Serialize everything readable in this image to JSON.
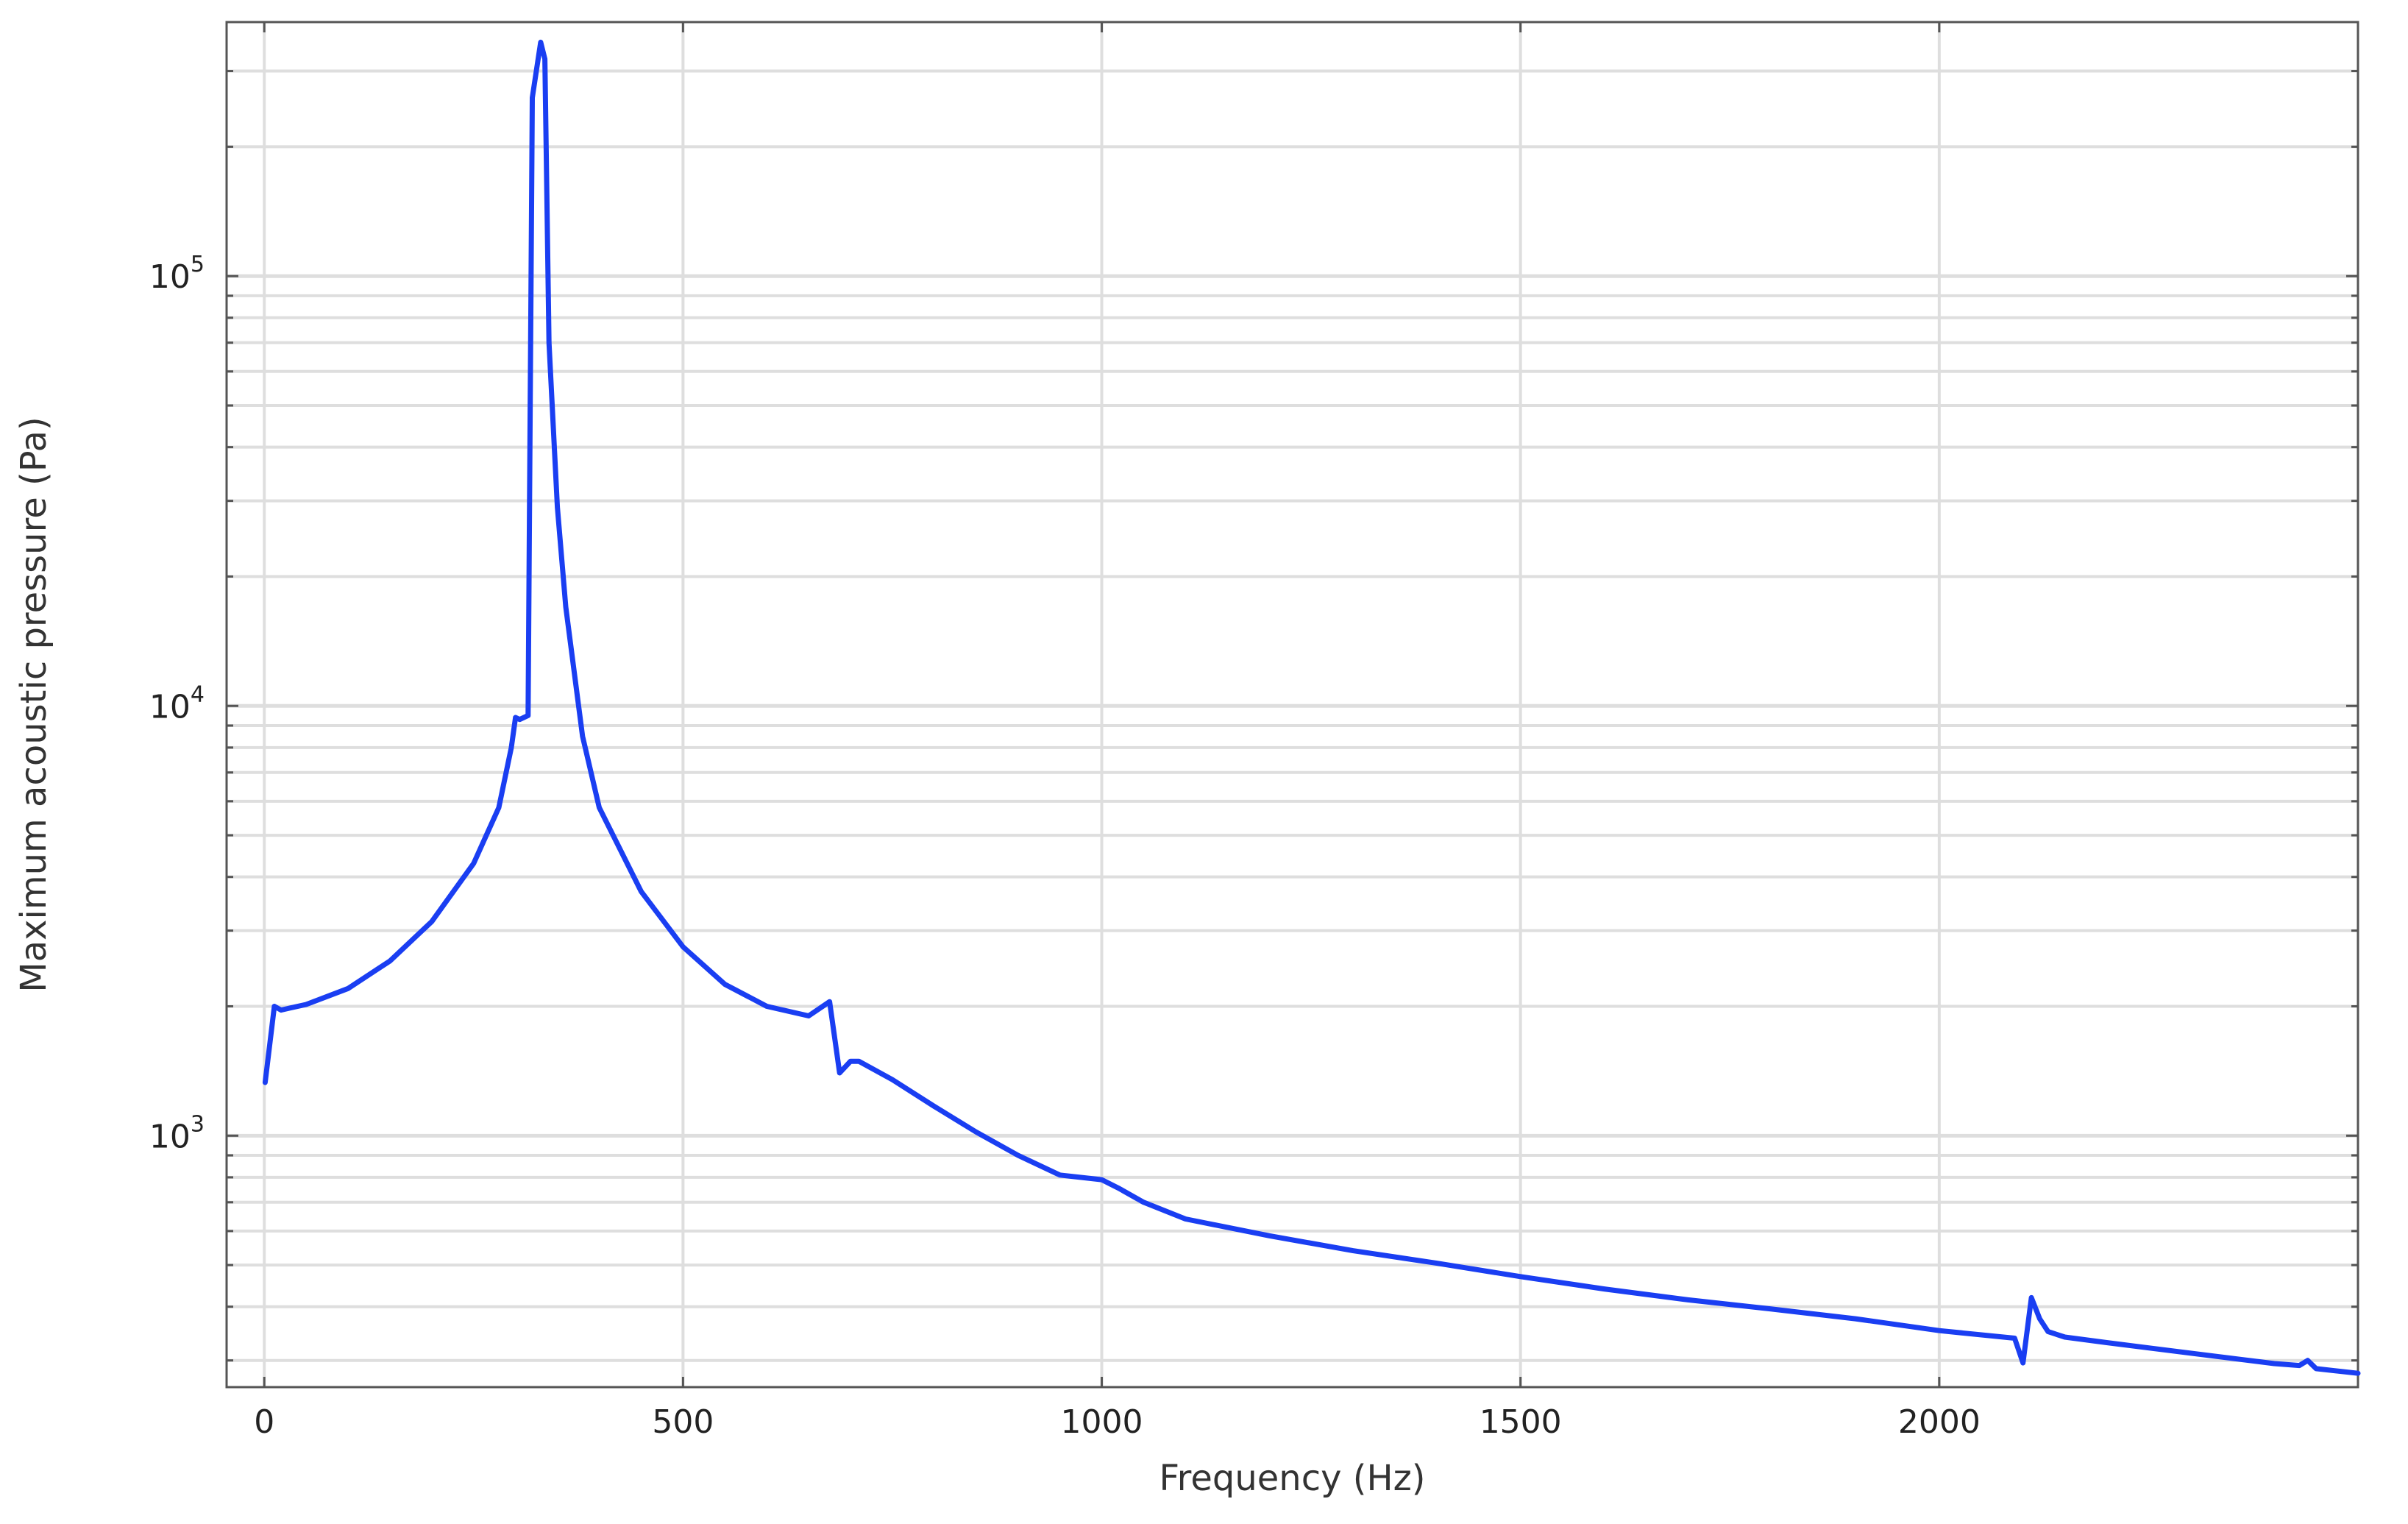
{
  "chart_data": {
    "type": "line",
    "title": "",
    "xlabel": "Frequency (Hz)",
    "ylabel": "Maximum acoustic pressure (Pa)",
    "xscale": "linear",
    "yscale": "log",
    "xlim": [
      -45,
      2500
    ],
    "ylim": [
      260,
      390000
    ],
    "grid": true,
    "legend": "none",
    "x_ticks": [
      0,
      500,
      1000,
      1500,
      2000
    ],
    "x_tick_labels": [
      "0",
      "500",
      "1000",
      "1500",
      "2000"
    ],
    "y_ticks": [
      1000,
      10000,
      100000
    ],
    "y_tick_labels": [
      {
        "base": "10",
        "exp": "3"
      },
      {
        "base": "10",
        "exp": "4"
      },
      {
        "base": "10",
        "exp": "5"
      }
    ],
    "series": [
      {
        "color": "#1a3ef2",
        "x": [
          1,
          12,
          20,
          30,
          50,
          100,
          150,
          200,
          250,
          280,
          295,
          300,
          305,
          315,
          320,
          330,
          335,
          340,
          350,
          360,
          380,
          400,
          450,
          500,
          550,
          600,
          650,
          675,
          687,
          700,
          710,
          750,
          800,
          850,
          900,
          950,
          1000,
          1020,
          1050,
          1100,
          1200,
          1300,
          1400,
          1500,
          1600,
          1700,
          1800,
          1900,
          2000,
          2090,
          2100,
          2110,
          2120,
          2130,
          2150,
          2200,
          2300,
          2400,
          2430,
          2440,
          2450,
          2500
        ],
        "y": [
          1330,
          2000,
          1960,
          1980,
          2020,
          2200,
          2550,
          3150,
          4300,
          5800,
          8000,
          9400,
          9300,
          9500,
          260000,
          350000,
          320000,
          70000,
          29000,
          17000,
          8500,
          5800,
          3700,
          2750,
          2250,
          2000,
          1900,
          2050,
          1400,
          1490,
          1490,
          1350,
          1170,
          1020,
          900,
          810,
          790,
          755,
          700,
          640,
          585,
          540,
          505,
          470,
          440,
          415,
          395,
          375,
          352,
          338,
          296,
          420,
          375,
          350,
          340,
          330,
          312,
          295,
          292,
          300,
          287,
          280
        ]
      }
    ]
  }
}
